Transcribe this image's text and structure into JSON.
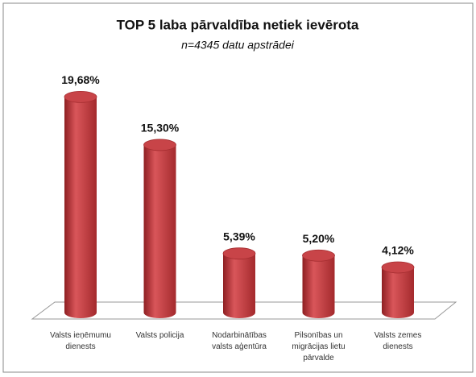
{
  "chart_data": {
    "type": "bar",
    "title": "TOP 5 laba pārvaldība netiek ievērota",
    "subtitle": "n=4345 datu apstrādei",
    "categories": [
      "Valsts ieņēmumu dienests",
      "Valsts policija",
      "Nodarbinātības valsts aģentūra",
      "Pilsonības un migrācijas lietu pārvalde",
      "Valsts zemes dienests"
    ],
    "values": [
      19.68,
      15.3,
      5.39,
      5.2,
      4.12
    ],
    "value_labels": [
      "19,68%",
      "15,30%",
      "5,39%",
      "5,20%",
      "4,12%"
    ],
    "color": "#c0393b"
  }
}
